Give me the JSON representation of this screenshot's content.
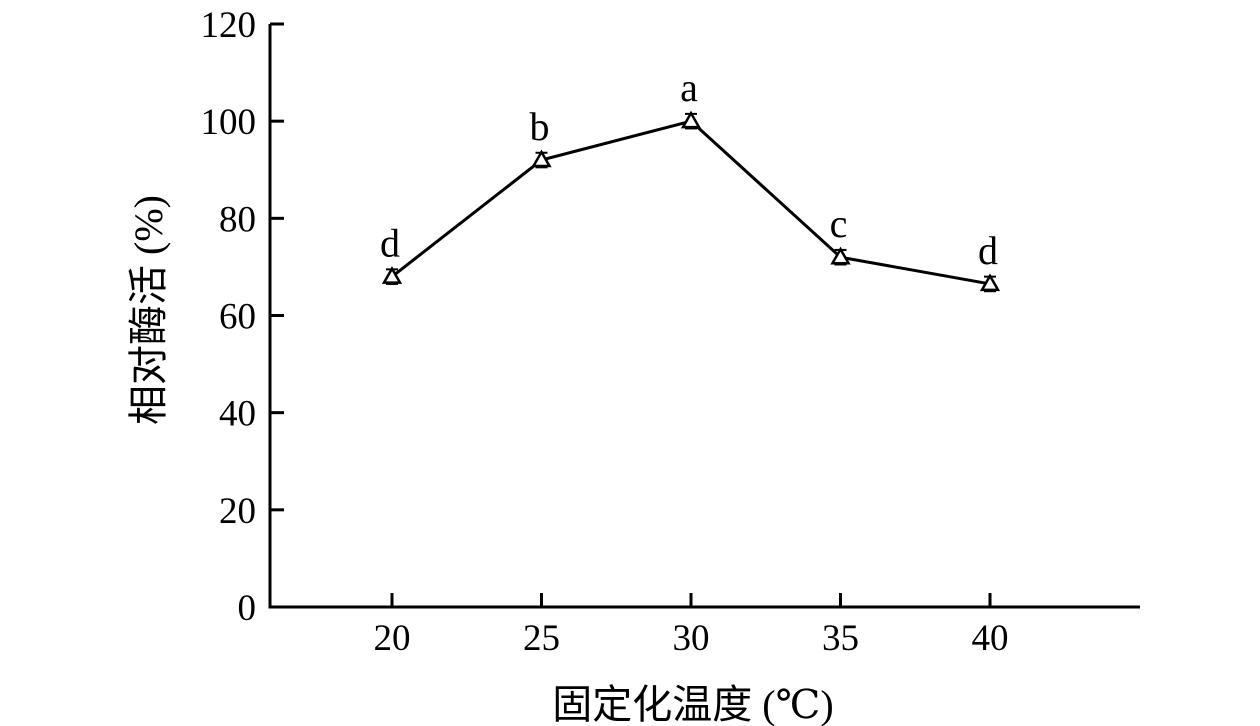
{
  "chart_data": {
    "type": "line",
    "title": "",
    "xlabel": "固定化温度 (℃)",
    "ylabel": "相对酶活 (%)",
    "x": [
      20,
      25,
      30,
      35,
      40
    ],
    "series": [
      {
        "name": "relative-enzyme-activity",
        "values": [
          68,
          92,
          100,
          72,
          66.5
        ],
        "errors": [
          1.5,
          1.5,
          1.5,
          1.5,
          1.5
        ],
        "point_labels": [
          "d",
          "b",
          "a",
          "c",
          "d"
        ],
        "marker": "open-triangle",
        "color": "#000000"
      }
    ],
    "xticks": [
      20,
      25,
      30,
      35,
      40
    ],
    "yticks": [
      0,
      20,
      40,
      60,
      80,
      100,
      120
    ],
    "xlim": [
      15.9,
      45
    ],
    "ylim": [
      0,
      120
    ],
    "grid": false,
    "legend": "none",
    "background": "#ffffff",
    "axis_color": "#000000",
    "tick_direction": "in"
  }
}
